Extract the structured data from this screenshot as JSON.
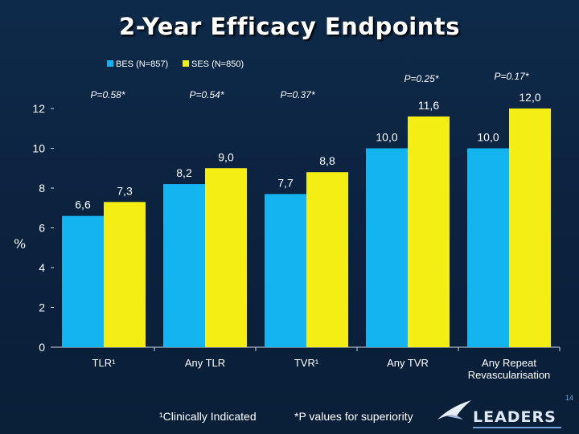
{
  "slide": {
    "title": "2-Year Efficacy Endpoints",
    "y_unit": "%",
    "footnote_1": "¹Clinically Indicated",
    "footnote_2": "*P values for superiority",
    "logo_text": "LEADERS",
    "page_number": "14"
  },
  "chart_data": {
    "type": "bar",
    "categories": [
      "TLR¹",
      "Any TLR",
      "TVR¹",
      "Any TVR",
      "Any Repeat Revascularisation"
    ],
    "category_lines": [
      [
        "TLR¹"
      ],
      [
        "Any TLR"
      ],
      [
        "TVR¹"
      ],
      [
        "Any TVR"
      ],
      [
        "Any Repeat",
        "Revascularisation"
      ]
    ],
    "series": [
      {
        "name": "BES (N=857)",
        "values": [
          6.6,
          8.2,
          7.7,
          10.0,
          10.0
        ],
        "labels": [
          "6,6",
          "8,2",
          "7,7",
          "10,0",
          "10,0"
        ],
        "color": "#14b4f0"
      },
      {
        "name": "SES (N=850)",
        "values": [
          7.3,
          9.0,
          8.8,
          11.6,
          12.0
        ],
        "labels": [
          "7,3",
          "9,0",
          "8,8",
          "11,6",
          "12,0"
        ],
        "color": "#f5ee14"
      }
    ],
    "p_values": [
      "P=0.58*",
      "P=0.54*",
      "P=0.37*",
      "P=0.25*",
      "P=0.17*"
    ],
    "ylabel": "%",
    "ylim": [
      0,
      12
    ],
    "yticks": [
      "0",
      "2",
      "4",
      "6",
      "8",
      "10",
      "12"
    ],
    "grid": false,
    "legend_position": "top"
  }
}
